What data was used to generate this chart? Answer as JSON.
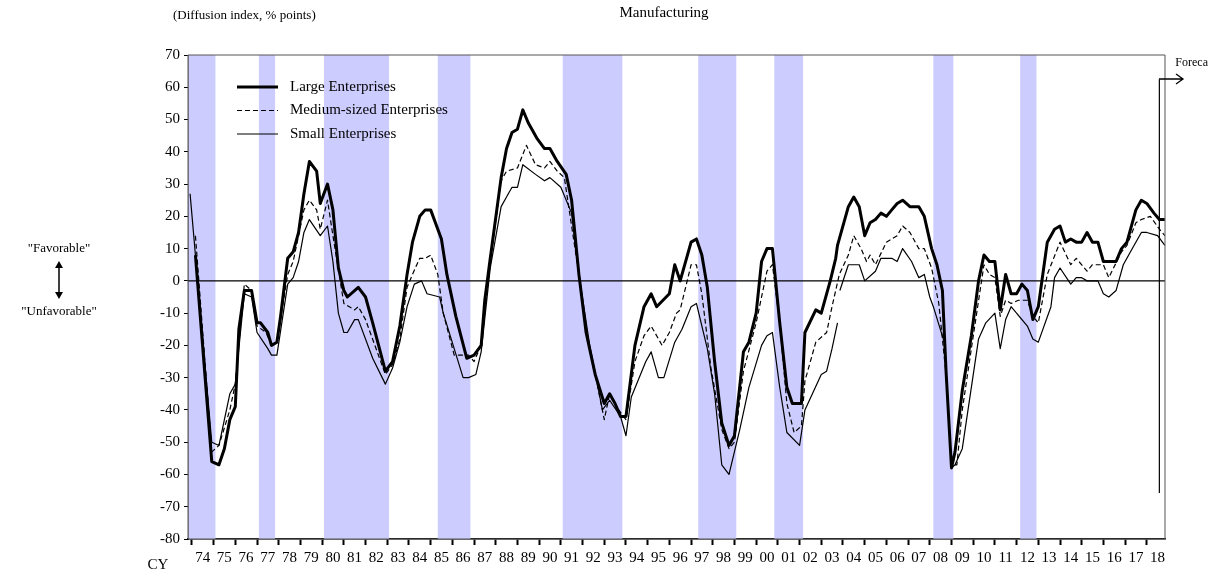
{
  "chart_data": {
    "type": "line",
    "title": "Manufacturing",
    "ylabel": "(Diffusion index, % points)",
    "xlabel": "CY",
    "annotations": [
      "\"Favorable\"",
      "\"Unfavorable\""
    ],
    "legend": "top left",
    "marker": "none",
    "xlim": [
      "1973-10-27",
      "2018-11-03"
    ],
    "ylim": [
      -80,
      70
    ],
    "yticks": [
      -80,
      -70,
      -60,
      -50,
      -40,
      -30,
      -20,
      -10,
      0,
      10,
      20,
      30,
      40,
      50,
      60,
      70
    ],
    "xticks": [
      {
        "value": "1974",
        "label": null
      },
      {
        "value": "1974-07",
        "label": "74"
      },
      {
        "value": "1975",
        "label": null
      },
      {
        "value": "1975-07",
        "label": "75"
      },
      {
        "value": "1976",
        "label": null
      },
      {
        "value": "1976-07",
        "label": "76"
      },
      {
        "value": "1977",
        "label": null
      },
      {
        "value": "1977-07",
        "label": "77"
      },
      {
        "value": "1978",
        "label": null
      },
      {
        "value": "1978-07",
        "label": "78"
      },
      {
        "value": "1979",
        "label": null
      },
      {
        "value": "1979-07",
        "label": "79"
      },
      {
        "value": "1980",
        "label": null
      },
      {
        "value": "1980-07",
        "label": "80"
      },
      {
        "value": "1981",
        "label": null
      },
      {
        "value": "1981-07",
        "label": "81"
      },
      {
        "value": "1982",
        "label": null
      },
      {
        "value": "1982-07",
        "label": "82"
      },
      {
        "value": "1983",
        "label": null
      },
      {
        "value": "1983-07",
        "label": "83"
      },
      {
        "value": "1984",
        "label": null
      },
      {
        "value": "1984-07",
        "label": "84"
      },
      {
        "value": "1985",
        "label": null
      },
      {
        "value": "1985-07",
        "label": "85"
      },
      {
        "value": "1986",
        "label": null
      },
      {
        "value": "1986-07",
        "label": "86"
      },
      {
        "value": "1987",
        "label": null
      },
      {
        "value": "1987-07",
        "label": "87"
      },
      {
        "value": "1988",
        "label": null
      },
      {
        "value": "1988-07",
        "label": "88"
      },
      {
        "value": "1989",
        "label": null
      },
      {
        "value": "1989-07",
        "label": "89"
      },
      {
        "value": "1990",
        "label": null
      },
      {
        "value": "1990-07",
        "label": "90"
      },
      {
        "value": "1991",
        "label": null
      },
      {
        "value": "1991-07",
        "label": "91"
      },
      {
        "value": "1992",
        "label": null
      },
      {
        "value": "1992-07",
        "label": "92"
      },
      {
        "value": "1993",
        "label": null
      },
      {
        "value": "1993-07",
        "label": "93"
      },
      {
        "value": "1994",
        "label": null
      },
      {
        "value": "1994-07",
        "label": "94"
      },
      {
        "value": "1995",
        "label": null
      },
      {
        "value": "1995-07",
        "label": "95"
      },
      {
        "value": "1996",
        "label": null
      },
      {
        "value": "1996-07",
        "label": "96"
      },
      {
        "value": "1997",
        "label": null
      },
      {
        "value": "1997-07",
        "label": "97"
      },
      {
        "value": "1998",
        "label": null
      },
      {
        "value": "1998-07",
        "label": "98"
      },
      {
        "value": "1999",
        "label": null
      },
      {
        "value": "1999-07",
        "label": "99"
      },
      {
        "value": "2000",
        "label": null
      },
      {
        "value": "2000-07",
        "label": "00"
      },
      {
        "value": "2001",
        "label": null
      },
      {
        "value": "2001-07",
        "label": "01"
      },
      {
        "value": "2002",
        "label": null
      },
      {
        "value": "2002-07",
        "label": "02"
      },
      {
        "value": "2003",
        "label": null
      },
      {
        "value": "2003-07",
        "label": "03"
      },
      {
        "value": "2004",
        "label": null
      },
      {
        "value": "2004-07",
        "label": "04"
      },
      {
        "value": "2005",
        "label": null
      },
      {
        "value": "2005-07",
        "label": "05"
      },
      {
        "value": "2006",
        "label": null
      },
      {
        "value": "2006-07",
        "label": "06"
      },
      {
        "value": "2007",
        "label": null
      },
      {
        "value": "2007-07",
        "label": "07"
      },
      {
        "value": "2008",
        "label": null
      },
      {
        "value": "2008-07",
        "label": "08"
      },
      {
        "value": "2009",
        "label": null
      },
      {
        "value": "2009-07",
        "label": "09"
      },
      {
        "value": "2010",
        "label": null
      },
      {
        "value": "2010-07",
        "label": "10"
      },
      {
        "value": "2011",
        "label": null
      },
      {
        "value": "2011-07",
        "label": "11"
      },
      {
        "value": "2012",
        "label": null
      },
      {
        "value": "2012-07",
        "label": "12"
      },
      {
        "value": "2013",
        "label": null
      },
      {
        "value": "2013-07",
        "label": "13"
      },
      {
        "value": "2014",
        "label": null
      },
      {
        "value": "2014-07",
        "label": "14"
      },
      {
        "value": "2015",
        "label": null
      },
      {
        "value": "2015-07",
        "label": "15"
      },
      {
        "value": "2016",
        "label": null
      },
      {
        "value": "2016-07",
        "label": "16"
      },
      {
        "value": "2017",
        "label": null
      },
      {
        "value": "2017-07",
        "label": "17"
      },
      {
        "value": "2018",
        "label": null
      },
      {
        "value": "2018-07",
        "label": "18"
      }
    ],
    "bands": [
      {
        "axis": "x",
        "from": "1973-11",
        "to": "1975-02",
        "color": "#ccccff"
      },
      {
        "axis": "x",
        "from": "1977-02",
        "to": "1977-11",
        "color": "#ccccff"
      },
      {
        "axis": "x",
        "from": "1980-02",
        "to": "1983-02",
        "color": "#ccccff"
      },
      {
        "axis": "x",
        "from": "1985-05",
        "to": "1986-11",
        "color": "#ccccff"
      },
      {
        "axis": "x",
        "from": "1991-02",
        "to": "1993-11",
        "color": "#ccccff"
      },
      {
        "axis": "x",
        "from": "1997-05",
        "to": "1999-02",
        "color": "#ccccff"
      },
      {
        "axis": "x",
        "from": "2000-11",
        "to": "2002-03",
        "color": "#ccccff"
      },
      {
        "axis": "x",
        "from": "2008-03",
        "to": "2009-02",
        "color": "#ccccff"
      },
      {
        "axis": "x",
        "from": "2012-03",
        "to": "2012-12",
        "color": "#ccccff"
      }
    ],
    "ref_lines": [
      {
        "axis": "y",
        "value": 0,
        "color": "#000000"
      },
      {
        "axis": "x",
        "value": "2018-07-31",
        "label": "Foreca",
        "color": "#000000"
      }
    ],
    "series": [
      {
        "name": "Large Enterprises",
        "color": "#000000",
        "line_style": "solid",
        "x": [
          "1974-03",
          "1974-12",
          "1975-04",
          "1975-07",
          "1975-10",
          "1976-01",
          "1976-03",
          "1976-06",
          "1976-10",
          "1977-01",
          "1977-03",
          "1977-07",
          "1977-09",
          "1977-12",
          "1978-02",
          "1978-06",
          "1978-09",
          "1978-12",
          "1979-03",
          "1979-06",
          "1979-10",
          "1979-12",
          "1980-04",
          "1980-07",
          "1980-10",
          "1981-01",
          "1981-03",
          "1981-07",
          "1981-09",
          "1982-01",
          "1982-05",
          "1982-12",
          "1983-04",
          "1983-08",
          "1983-10",
          "1983-12",
          "1984-03",
          "1984-07",
          "1984-10",
          "1985-01",
          "1985-07",
          "1985-10",
          "1986-03",
          "1986-09",
          "1987-01",
          "1987-05",
          "1987-07",
          "1987-10",
          "1988-04",
          "1988-07",
          "1988-10",
          "1989-01",
          "1989-04",
          "1989-07",
          "1989-12",
          "1990-04",
          "1990-07",
          "1990-11",
          "1991-04",
          "1991-07",
          "1991-11",
          "1992-03",
          "1992-08",
          "1993-01",
          "1993-04",
          "1993-07",
          "1993-10",
          "1994-01",
          "1994-06",
          "1994-11",
          "1995-03",
          "1995-06",
          "1996-01",
          "1996-04",
          "1996-07",
          "1996-09",
          "1997-01",
          "1997-04",
          "1997-07",
          "1997-10",
          "1998-02",
          "1998-06",
          "1998-10",
          "1999-01",
          "1999-06",
          "1999-09",
          "2000-01",
          "2000-04",
          "2000-07",
          "2000-10",
          "2001-02",
          "2001-06",
          "2001-09",
          "2002-02",
          "2002-04",
          "2002-10",
          "2003-01",
          "2003-06",
          "2003-09",
          "2003-10",
          "2004-04",
          "2004-07",
          "2004-10",
          "2005-01",
          "2005-04",
          "2005-07",
          "2005-10",
          "2006-01",
          "2006-04",
          "2006-07",
          "2006-10",
          "2007-02",
          "2007-07",
          "2007-10",
          "2008-02",
          "2008-05",
          "2008-08",
          "2008-10",
          "2009-01",
          "2009-03",
          "2009-07",
          "2009-12",
          "2010-04",
          "2010-07",
          "2010-10",
          "2011-01",
          "2011-04",
          "2011-07",
          "2011-10",
          "2012-01",
          "2012-04",
          "2012-07",
          "2012-10",
          "2013-01",
          "2013-06",
          "2013-10",
          "2014-01",
          "2014-04",
          "2014-07",
          "2014-10",
          "2015-01",
          "2015-04",
          "2015-07",
          "2015-10",
          "2016-01",
          "2016-08",
          "2016-11",
          "2017-02",
          "2017-07",
          "2017-10",
          "2018-01",
          "2018-05",
          "2018-08",
          "2018-11"
        ],
        "values": [
          8,
          -56,
          -57,
          -52,
          -43,
          -39,
          -15,
          -3,
          -3,
          -13,
          -13,
          -16,
          -20,
          -19,
          -11,
          7,
          9,
          15,
          27,
          37,
          34,
          24,
          30,
          22,
          4,
          -3,
          -5,
          -3,
          -2,
          -5,
          -13,
          -28,
          -25,
          -14,
          -6,
          2,
          12,
          20,
          22,
          22,
          13,
          2,
          -11,
          -24,
          -23,
          -20,
          -6,
          7,
          32,
          41,
          46,
          47,
          53,
          49,
          44,
          41,
          41,
          37,
          33,
          25,
          2,
          -16,
          -29,
          -38,
          -35,
          -38,
          -42,
          -42,
          -20,
          -8,
          -4,
          -8,
          -4,
          5,
          0,
          4,
          12,
          13,
          8,
          -2,
          -25,
          -44,
          -51,
          -48,
          -22,
          -19,
          -10,
          6,
          10,
          10,
          -13,
          -33,
          -38,
          -38,
          -16,
          -9,
          -10,
          0,
          7,
          11,
          23,
          26,
          23,
          14,
          18,
          19,
          21,
          20,
          22,
          24,
          25,
          23,
          23,
          20,
          10,
          5,
          -3,
          -28,
          -58,
          -53,
          -34,
          -17,
          0,
          8,
          6,
          6,
          -9,
          2,
          -4,
          -4,
          -1,
          -3,
          -12,
          -8,
          12,
          16,
          17,
          12,
          13,
          12,
          12,
          15,
          12,
          12,
          6,
          6,
          10,
          12,
          22,
          25,
          24,
          21,
          19,
          19
        ]
      },
      {
        "name": "Medium-sized Enterprises",
        "color": "#000000",
        "line_style": "dashed",
        "x": [
          "1974-03",
          "1974-12",
          "1975-04",
          "1975-10",
          "1976-01",
          "1976-06",
          "1976-10",
          "1977-01",
          "1977-06",
          "1977-09",
          "1977-12",
          "1978-06",
          "1978-09",
          "1979-03",
          "1979-06",
          "1979-10",
          "1979-12",
          "1980-04",
          "1980-07",
          "1981-01",
          "1981-07",
          "1981-09",
          "1982-01",
          "1982-12",
          "1983-04",
          "1983-08",
          "1983-12",
          "1984-03",
          "1984-07",
          "1984-10",
          "1985-01",
          "1985-05",
          "1985-08",
          "1986-02",
          "1986-10",
          "1987-01",
          "1987-05",
          "1987-10",
          "1988-04",
          "1988-07",
          "1989-01",
          "1989-06",
          "1989-11",
          "1990-04",
          "1990-07",
          "1990-11",
          "1991-03",
          "1991-11",
          "1992-03",
          "1992-08",
          "1993-01",
          "1993-04",
          "1993-09",
          "1994-01",
          "1994-06",
          "1994-11",
          "1995-03",
          "1995-09",
          "1996-01",
          "1996-05",
          "1996-07",
          "1997-01",
          "1997-04",
          "1997-07",
          "1997-12",
          "1998-06",
          "1998-10",
          "1999-01",
          "1999-06",
          "2000-01",
          "2000-07",
          "2000-10",
          "2001-02",
          "2001-06",
          "2001-10",
          "2002-02",
          "2002-04",
          "2002-10",
          "2003-04",
          "2003-07",
          "2003-11",
          "2004-04",
          "2004-07",
          "2004-11",
          "2005-02",
          "2005-04",
          "2005-07",
          "2006-01",
          "2006-07",
          "2006-10",
          "2007-02",
          "2007-07",
          "2007-10",
          "2008-02",
          "2008-06",
          "2008-10",
          "2009-01",
          "2009-04",
          "2009-07",
          "2009-12",
          "2010-07",
          "2010-10",
          "2011-01",
          "2011-04",
          "2011-07",
          "2011-10",
          "2012-02",
          "2012-07",
          "2012-10",
          "2013-01",
          "2013-06",
          "2014-01",
          "2014-07",
          "2014-10",
          "2015-04",
          "2015-07",
          "2016-01",
          "2016-04",
          "2016-11",
          "2017-02",
          "2017-07",
          "2017-10",
          "2018-03",
          "2018-08",
          "2018-11"
        ],
        "values": [
          14,
          -53,
          -51,
          -40,
          -32,
          -1,
          -3,
          -14,
          -16,
          -20,
          -19,
          2,
          6,
          22,
          25,
          22,
          16,
          25,
          14,
          -7,
          -9,
          -8,
          -12,
          -29,
          -26,
          -18,
          -2,
          2,
          7,
          7,
          8,
          2,
          -10,
          -23,
          -23,
          -25,
          -20,
          6,
          31,
          34,
          35,
          42,
          36,
          35,
          37,
          34,
          32,
          2,
          -16,
          -29,
          -43,
          -35,
          -40,
          -43,
          -25,
          -17,
          -14,
          -20,
          -16,
          -10,
          -9,
          5,
          5,
          -4,
          -27,
          -46,
          -52,
          -50,
          -28,
          -13,
          3,
          5,
          -13,
          -38,
          -47,
          -45,
          -31,
          -19,
          -16,
          -8,
          2,
          8,
          14,
          10,
          6,
          8,
          5,
          12,
          14,
          17,
          15,
          10,
          10,
          4,
          -7,
          -29,
          -57,
          -57,
          -40,
          -21,
          5,
          2,
          1,
          -11,
          -6,
          -7,
          -6,
          -6,
          -11,
          -13,
          2,
          12,
          5,
          7,
          3,
          5,
          5,
          1,
          9,
          11,
          18,
          19,
          20,
          16,
          14
        ]
      },
      {
        "name": "Small Enterprises",
        "color": "#000000",
        "line_style": "solid",
        "x": [
          "1973-12",
          "1974-12",
          "1975-04",
          "1975-10",
          "1976-01",
          "1976-06",
          "1976-10",
          "1977-01",
          "1977-07",
          "1977-09",
          "1977-12",
          "1978-06",
          "1978-09",
          "1978-12",
          "1979-03",
          "1979-06",
          "1979-12",
          "1980-04",
          "1980-07",
          "1980-10",
          "1981-01",
          "1981-03",
          "1981-07",
          "1981-09",
          "1982-05",
          "1982-12",
          "1983-04",
          "1983-08",
          "1983-12",
          "1984-04",
          "1984-08",
          "1984-11",
          "1985-06",
          "1985-08",
          "1986-02",
          "1986-07",
          "1986-10",
          "1987-02",
          "1987-05",
          "1987-10",
          "1988-04",
          "1988-07",
          "1988-10",
          "1989-01",
          "1989-04",
          "1989-11",
          "1990-04",
          "1990-07",
          "1991-01",
          "1991-07",
          "1991-11",
          "1992-05",
          "1992-12",
          "1993-04",
          "1993-10",
          "1994-01",
          "1994-04",
          "1994-12",
          "1995-03",
          "1995-07",
          "1995-10",
          "1996-04",
          "1996-08",
          "1997-01",
          "1997-04",
          "1997-10",
          "1998-02",
          "1998-06",
          "1998-10",
          "1999-04",
          "1999-09",
          "2000-04",
          "2000-07",
          "2000-10",
          "2001-02",
          "2001-06",
          "2002-01",
          "2002-04",
          "2003-01",
          "2003-04",
          "2003-07",
          "2003-10-01",
          "2003-10-20",
          "2003-11-10",
          "2004-04",
          "2004-07",
          "2004-10",
          "2005-01",
          "2005-07",
          "2005-10",
          "2006-04",
          "2006-07",
          "2006-10",
          "2007-03",
          "2007-07",
          "2007-10",
          "2008-01",
          "2008-03",
          "2008-09",
          "2009-01",
          "2009-03",
          "2009-07",
          "2010-04",
          "2010-08",
          "2011-01",
          "2011-04",
          "2011-07",
          "2011-10",
          "2012-07",
          "2012-10",
          "2013-01",
          "2013-08",
          "2013-10",
          "2014-01",
          "2014-07",
          "2014-10",
          "2015-01",
          "2015-04",
          "2015-10",
          "2016-01",
          "2016-04",
          "2016-08",
          "2016-12",
          "2017-04",
          "2017-10",
          "2018-01",
          "2018-07",
          "2018-11"
        ],
        "values": [
          27,
          -50,
          -51,
          -35,
          -32,
          -4,
          -5,
          -16,
          -21,
          -23,
          -23,
          -1,
          1,
          6,
          15,
          19,
          14,
          17,
          6,
          -10,
          -16,
          -16,
          -12,
          -12,
          -24,
          -32,
          -27,
          -19,
          -8,
          -1,
          0,
          -4,
          -5,
          -10,
          -21,
          -30,
          -30,
          -29,
          -22,
          4,
          23,
          26,
          29,
          29,
          36,
          33,
          31,
          32,
          29,
          21,
          2,
          -20,
          -40,
          -37,
          -42,
          -48,
          -36,
          -25,
          -22,
          -30,
          -30,
          -19,
          -15,
          -8,
          -7,
          -21,
          -35,
          -57,
          -60,
          -46,
          -33,
          -20,
          -17,
          -16,
          -33,
          -47,
          -51,
          -40,
          -29,
          -28,
          -21,
          -13,
          null,
          -3,
          5,
          5,
          5,
          0,
          3,
          7,
          7,
          6,
          10,
          6,
          1,
          2,
          -5,
          -8,
          -19,
          -58,
          -57,
          -52,
          -18,
          -13,
          -10,
          -21,
          -12,
          -8,
          -14,
          -18,
          -19,
          -8,
          1,
          4,
          -1,
          1,
          1,
          0,
          0,
          -4,
          -5,
          -3,
          5,
          9,
          15,
          15,
          14,
          11
        ]
      }
    ]
  }
}
